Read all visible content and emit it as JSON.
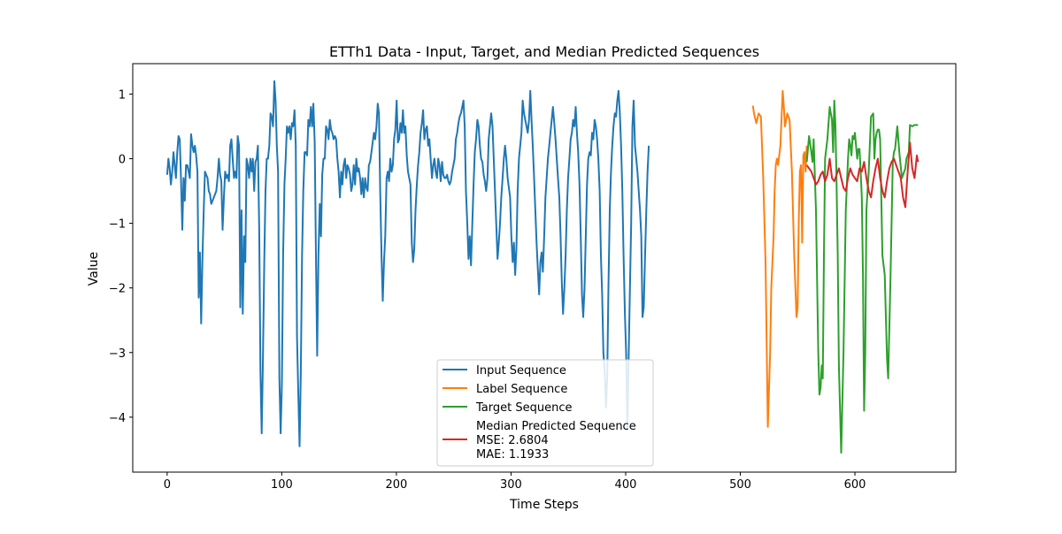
{
  "chart_data": {
    "type": "line",
    "title": "ETTh1 Data - Input, Target, and Median Predicted Sequences",
    "xlabel": "Time Steps",
    "ylabel": "Value",
    "xlim": [
      -30,
      688
    ],
    "ylim": [
      -4.85,
      1.47
    ],
    "xticks": [
      0,
      100,
      200,
      300,
      400,
      500,
      600
    ],
    "yticks": [
      1,
      0,
      -1,
      -2,
      -3,
      -4
    ],
    "ytick_labels": [
      "1",
      "0",
      "−1",
      "−2",
      "−3",
      "−4"
    ],
    "grid": false,
    "legend_position": "lower center",
    "legend": [
      {
        "key": "input",
        "label": "Input Sequence"
      },
      {
        "key": "label",
        "label": "Label Sequence"
      },
      {
        "key": "target",
        "label": "Target Sequence"
      },
      {
        "key": "median",
        "label": "Median Predicted Sequence",
        "extra": [
          "MSE: 2.6804",
          "MAE: 1.1933"
        ]
      }
    ],
    "series": [
      {
        "key": "input",
        "name": "Input Sequence",
        "color": "#1f77b4",
        "x_start": 0,
        "values": [
          -0.25,
          0.0,
          -0.15,
          -0.4,
          -0.2,
          0.1,
          -0.1,
          -0.3,
          0.1,
          0.35,
          0.3,
          -0.3,
          -1.1,
          -0.3,
          -0.65,
          -0.1,
          -0.1,
          -0.2,
          -0.3,
          0.38,
          0.2,
          0.1,
          0.2,
          0.05,
          -0.2,
          -2.15,
          -1.45,
          -2.55,
          -1.5,
          -0.8,
          -0.2,
          -0.25,
          -0.3,
          -0.5,
          -0.55,
          -0.7,
          -0.65,
          -0.6,
          -0.55,
          -0.5,
          -0.3,
          0.0,
          -0.25,
          -0.35,
          -1.1,
          -0.6,
          -0.2,
          -0.3,
          -0.25,
          -0.35,
          0.2,
          0.3,
          0.0,
          -0.3,
          -0.2,
          -0.3,
          0.35,
          0.2,
          -2.3,
          -0.8,
          -2.4,
          -1.2,
          -1.6,
          0.0,
          -0.1,
          -0.3,
          0.0,
          -0.2,
          0.0,
          -0.5,
          -0.05,
          0.0,
          0.2,
          -1.1,
          -3.3,
          -4.25,
          -3.1,
          -1.6,
          -0.5,
          0.0,
          0.0,
          0.2,
          0.7,
          0.65,
          0.5,
          1.2,
          0.9,
          0.2,
          -0.2,
          -3.4,
          -4.25,
          -3.5,
          -1.5,
          -0.4,
          0.0,
          0.5,
          0.4,
          0.5,
          0.3,
          0.55,
          0.5,
          0.75,
          0.2,
          -2.75,
          -3.6,
          -4.45,
          -3.3,
          -1.5,
          -0.5,
          0.1,
          0.1,
          0.05,
          0.6,
          0.5,
          0.8,
          0.5,
          0.85,
          0.25,
          -1.5,
          -3.05,
          -1.5,
          -0.7,
          -1.2,
          -0.25,
          0.0,
          0.0,
          0.5,
          0.45,
          0.3,
          0.6,
          0.45,
          0.4,
          0.3,
          0.35,
          0.3,
          0.0,
          -0.2,
          -0.6,
          -0.2,
          -0.4,
          -0.1,
          0.0,
          -0.3,
          -0.1,
          -0.15,
          -0.25,
          -0.5,
          -0.4,
          -0.1,
          -0.4,
          0.0,
          -0.2,
          -0.15,
          -0.3,
          -0.55,
          -0.3,
          -0.6,
          -0.3,
          -0.45,
          -0.5,
          -0.1,
          -0.05,
          0.1,
          0.25,
          0.4,
          0.3,
          0.5,
          0.85,
          0.7,
          -0.5,
          -1.5,
          -2.2,
          -1.6,
          -1.2,
          -0.3,
          -0.2,
          -0.35,
          0.0,
          -0.2,
          -0.1,
          0.3,
          0.45,
          0.9,
          0.25,
          0.3,
          0.55,
          0.4,
          0.75,
          0.4,
          0.5,
          0.05,
          -0.2,
          -0.3,
          -0.4,
          -1.3,
          -1.6,
          -1.4,
          -0.8,
          -0.4,
          -0.1,
          0.1,
          0.4,
          0.55,
          0.75,
          0.3,
          0.45,
          0.5,
          0.2,
          0.3,
          0.0,
          -0.3,
          -0.1,
          0.0,
          -0.2,
          -0.3,
          0.0,
          -0.1,
          -0.35,
          -0.05,
          -0.25,
          -0.3,
          -0.3,
          -0.25,
          -0.35,
          -0.4,
          -0.35,
          -0.2,
          -0.1,
          0.0,
          0.3,
          0.4,
          0.55,
          0.65,
          0.7,
          0.8,
          0.9,
          0.5,
          -0.5,
          -1.0,
          -1.55,
          -1.2,
          -1.65,
          -1.0,
          -0.4,
          0.1,
          0.3,
          0.6,
          0.5,
          0.2,
          0.0,
          -0.05,
          -0.25,
          -0.35,
          -0.5,
          -0.3,
          0.3,
          0.5,
          0.7,
          0.5,
          0.0,
          -0.5,
          -1.0,
          -1.55,
          -1.3,
          -1.0,
          -0.6,
          -0.3,
          0.0,
          0.2,
          0.0,
          -0.3,
          -0.45,
          -0.6,
          -1.2,
          -1.6,
          -1.3,
          -1.8,
          -1.4,
          -0.5,
          0.0,
          0.2,
          0.4,
          0.9,
          0.7,
          0.6,
          0.5,
          0.4,
          0.6,
          1.05,
          0.6,
          0.2,
          -0.3,
          -0.8,
          -1.3,
          -1.7,
          -2.1,
          -1.6,
          -1.45,
          -1.75,
          -1.2,
          -0.6,
          -0.3,
          0.0,
          0.2,
          0.4,
          0.6,
          0.8,
          0.55,
          0.3,
          0.0,
          -0.3,
          -0.6,
          -1.2,
          -1.9,
          -2.4,
          -2.0,
          -1.5,
          -0.8,
          -0.3,
          0.0,
          0.3,
          0.4,
          0.6,
          0.5,
          0.8,
          0.4,
          0.1,
          -0.4,
          -1.2,
          -2.1,
          -2.45,
          -2.0,
          -1.2,
          -0.4,
          0.0,
          0.1,
          0.05,
          0.4,
          0.3,
          0.6,
          0.5,
          0.3,
          0.0,
          -0.5,
          -1.5,
          -2.1,
          -3.0,
          -3.3,
          -3.85,
          -3.4,
          -2.0,
          -0.8,
          -0.2,
          0.2,
          0.5,
          0.7,
          0.65,
          0.9,
          1.05,
          0.7,
          0.2,
          -0.5,
          -1.5,
          -2.4,
          -3.0,
          -4.2,
          -3.1,
          -2.0,
          -1.0,
          0.5,
          0.9,
          0.2,
          0.0,
          -0.2,
          -0.5,
          -0.8,
          -1.2,
          -2.45,
          -2.3,
          -1.5,
          -0.8,
          -0.2,
          0.2
        ],
        "x_step": 1.1
      },
      {
        "key": "label",
        "name": "Label Sequence",
        "color": "#ff7f0e",
        "x": [
          511,
          512,
          514,
          516,
          518,
          520,
          522,
          524,
          526,
          527,
          529,
          530,
          531,
          532,
          533,
          535,
          537,
          538,
          539,
          541,
          543,
          545,
          547,
          549,
          550,
          551,
          552,
          553,
          554,
          555,
          556,
          557,
          558
        ],
        "values": [
          0.82,
          0.7,
          0.55,
          0.7,
          0.65,
          -0.3,
          -1.6,
          -4.15,
          -3.0,
          -2.0,
          -1.2,
          -0.5,
          -0.1,
          0.0,
          -0.1,
          0.2,
          1.05,
          0.8,
          0.5,
          0.7,
          0.6,
          -0.2,
          -1.5,
          -2.45,
          -2.3,
          -1.0,
          -0.2,
          -0.1,
          -1.3,
          0.05,
          0.1,
          -0.2,
          0.2
        ]
      },
      {
        "key": "target",
        "name": "Target Sequence",
        "color": "#2ca02c",
        "x": [
          558,
          560,
          562,
          563,
          564,
          566,
          568,
          569,
          570,
          571,
          572,
          573,
          574,
          576,
          578,
          580,
          581,
          582,
          583,
          584,
          585,
          586,
          588,
          590,
          592,
          594,
          595,
          596,
          597,
          598,
          599,
          600,
          602,
          603,
          604,
          605,
          606,
          607,
          608,
          609,
          610,
          612,
          614,
          616,
          617,
          618,
          619,
          620,
          621,
          622,
          624,
          626,
          628,
          629,
          631,
          633,
          634,
          635,
          637,
          639,
          641,
          643,
          644,
          645,
          646,
          647,
          648,
          650,
          652,
          654,
          655
        ],
        "values": [
          -0.05,
          0.35,
          0.1,
          -0.05,
          0.3,
          -0.8,
          -3.0,
          -3.65,
          -3.55,
          -3.2,
          -3.4,
          -1.5,
          0.0,
          0.3,
          0.8,
          0.6,
          0.1,
          0.9,
          0.5,
          -0.4,
          -1.5,
          -3.2,
          -4.55,
          -3.0,
          -0.8,
          0.0,
          0.3,
          0.2,
          0.05,
          0.35,
          0.3,
          0.4,
          0.0,
          0.15,
          0.15,
          -0.2,
          -0.6,
          -1.8,
          -3.9,
          -3.0,
          -0.8,
          -0.2,
          0.65,
          0.7,
          0.0,
          0.3,
          0.4,
          0.45,
          0.45,
          0.3,
          -1.5,
          -1.8,
          -3.1,
          -3.4,
          -1.85,
          -0.05,
          0.1,
          0.15,
          0.5,
          0.05,
          -0.3,
          -0.2,
          -0.15,
          0.0,
          0.05,
          0.1,
          0.52,
          0.5,
          0.52,
          0.52,
          0.52
        ]
      },
      {
        "key": "median",
        "name": "Median Predicted Sequence",
        "color": "#d62728",
        "x": [
          558,
          560,
          562,
          564,
          566,
          568,
          570,
          572,
          574,
          576,
          578,
          580,
          582,
          584,
          586,
          588,
          590,
          592,
          594,
          596,
          598,
          600,
          602,
          604,
          606,
          608,
          610,
          612,
          614,
          616,
          618,
          620,
          622,
          624,
          626,
          628,
          630,
          632,
          634,
          636,
          638,
          640,
          642,
          644,
          646,
          648,
          650,
          652,
          654,
          655
        ],
        "values": [
          -0.1,
          -0.15,
          -0.2,
          -0.3,
          -0.4,
          -0.35,
          -0.25,
          -0.2,
          -0.35,
          -0.25,
          0.0,
          -0.3,
          -0.35,
          -0.25,
          -0.15,
          -0.3,
          -0.45,
          -0.5,
          -0.3,
          -0.15,
          -0.25,
          -0.3,
          -0.35,
          -0.15,
          -0.2,
          -0.05,
          -0.3,
          -0.5,
          -0.6,
          -0.35,
          -0.15,
          0.0,
          -0.3,
          -0.5,
          -0.6,
          -0.35,
          -0.15,
          -0.05,
          0.0,
          -0.1,
          -0.2,
          -0.3,
          -0.6,
          -0.75,
          -0.2,
          0.25,
          -0.15,
          -0.3,
          0.05,
          -0.05
        ]
      }
    ]
  }
}
